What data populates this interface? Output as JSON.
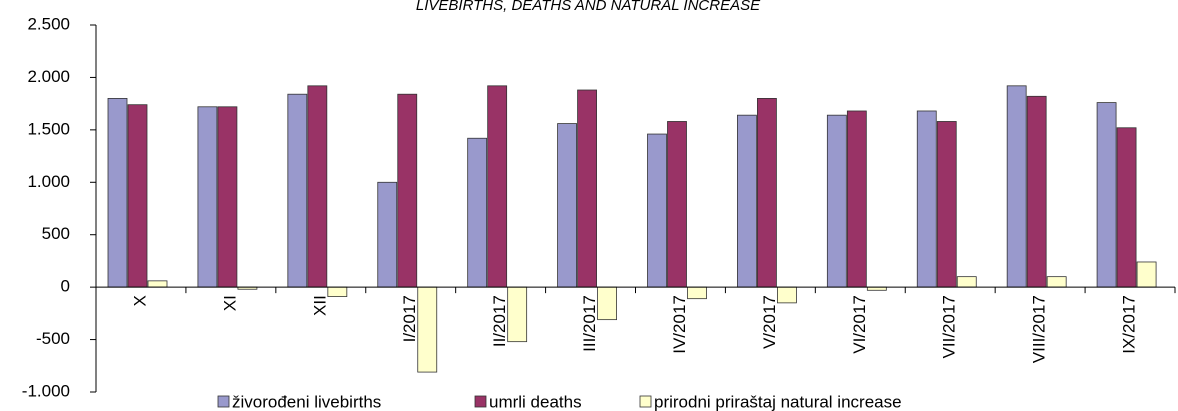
{
  "chart_data": {
    "type": "bar",
    "title": "LIVEBIRTHS,  DEATHS AND NATURAL INCREASE",
    "categories": [
      "X",
      "XI",
      "XII",
      "I/2017",
      "II/2017",
      "III/2017",
      "IV/2017",
      "V/2017",
      "VI/2017",
      "VII/2017",
      "VIII/2017",
      "IX/2017"
    ],
    "series": [
      {
        "name": "živorođeni livebirths",
        "color": "#9999cc",
        "values": [
          1800,
          1720,
          1840,
          1000,
          1420,
          1560,
          1460,
          1640,
          1640,
          1680,
          1920,
          1760
        ]
      },
      {
        "name": "umrli deaths",
        "color": "#993366",
        "values": [
          1740,
          1720,
          1920,
          1840,
          1920,
          1880,
          1580,
          1800,
          1680,
          1580,
          1820,
          1520
        ]
      },
      {
        "name": "prirodni priraštaj natural increase",
        "color": "#ffffcc",
        "values": [
          60,
          -20,
          -90,
          -810,
          -520,
          -310,
          -110,
          -150,
          -30,
          100,
          100,
          240
        ]
      }
    ],
    "ylim": [
      -1000,
      2500
    ],
    "yticks": [
      {
        "value": -1000,
        "label": "-1.000"
      },
      -500,
      0,
      500,
      {
        "value": 1000,
        "label": "1.000"
      },
      {
        "value": 1500,
        "label": "1.500"
      },
      {
        "value": 2000,
        "label": "2.000"
      },
      {
        "value": 2500,
        "label": "2.500"
      }
    ],
    "grid": false,
    "legend": "bottom"
  }
}
